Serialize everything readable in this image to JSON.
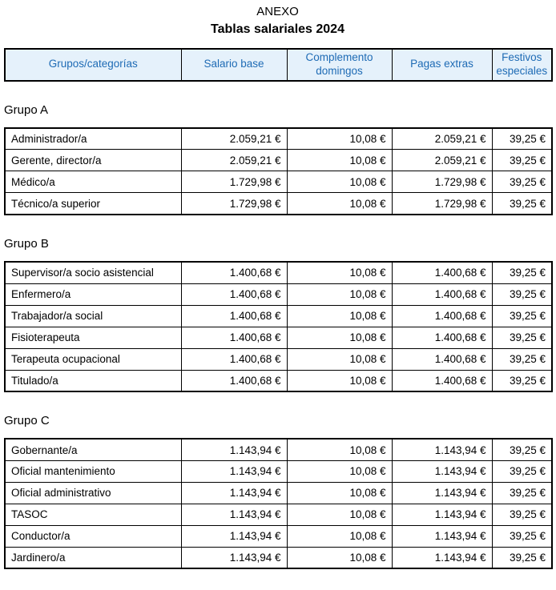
{
  "title": "ANEXO",
  "subtitle": "Tablas salariales 2024",
  "colors": {
    "header_bg": "#e5f1fb",
    "header_text": "#1e6bb5"
  },
  "columns": [
    "Grupos/categorías",
    "Salario base",
    "Complemento domingos",
    "Pagas extras",
    "Festivos especiales"
  ],
  "groups": [
    {
      "name": "Grupo A",
      "rows": [
        {
          "category": "Administrador/a",
          "values": [
            "2.059,21 €",
            "10,08 €",
            "2.059,21 €",
            "39,25 €"
          ]
        },
        {
          "category": "Gerente, director/a",
          "values": [
            "2.059,21 €",
            "10,08 €",
            "2.059,21 €",
            "39,25 €"
          ]
        },
        {
          "category": "Médico/a",
          "values": [
            "1.729,98 €",
            "10,08 €",
            "1.729,98 €",
            "39,25 €"
          ]
        },
        {
          "category": "Técnico/a superior",
          "values": [
            "1.729,98 €",
            "10,08 €",
            "1.729,98 €",
            "39,25 €"
          ]
        }
      ]
    },
    {
      "name": "Grupo B",
      "rows": [
        {
          "category": "Supervisor/a socio asistencial",
          "values": [
            "1.400,68 €",
            "10,08 €",
            "1.400,68 €",
            "39,25 €"
          ]
        },
        {
          "category": "Enfermero/a",
          "values": [
            "1.400,68 €",
            "10,08 €",
            "1.400,68 €",
            "39,25 €"
          ]
        },
        {
          "category": "Trabajador/a social",
          "values": [
            "1.400,68 €",
            "10,08 €",
            "1.400,68 €",
            "39,25 €"
          ]
        },
        {
          "category": "Fisioterapeuta",
          "values": [
            "1.400,68 €",
            "10,08 €",
            "1.400,68 €",
            "39,25 €"
          ]
        },
        {
          "category": "Terapeuta ocupacional",
          "values": [
            "1.400,68 €",
            "10,08 €",
            "1.400,68 €",
            "39,25 €"
          ]
        },
        {
          "category": "Titulado/a",
          "values": [
            "1.400,68 €",
            "10,08 €",
            "1.400,68 €",
            "39,25 €"
          ]
        }
      ]
    },
    {
      "name": "Grupo C",
      "rows": [
        {
          "category": "Gobernante/a",
          "values": [
            "1.143,94 €",
            "10,08 €",
            "1.143,94 €",
            "39,25 €"
          ]
        },
        {
          "category": "Oficial mantenimiento",
          "values": [
            "1.143,94 €",
            "10,08 €",
            "1.143,94 €",
            "39,25 €"
          ]
        },
        {
          "category": "Oficial administrativo",
          "values": [
            "1.143,94 €",
            "10,08 €",
            "1.143,94 €",
            "39,25 €"
          ]
        },
        {
          "category": "TASOC",
          "values": [
            "1.143,94 €",
            "10,08 €",
            "1.143,94 €",
            "39,25 €"
          ]
        },
        {
          "category": "Conductor/a",
          "values": [
            "1.143,94 €",
            "10,08 €",
            "1.143,94 €",
            "39,25 €"
          ]
        },
        {
          "category": "Jardinero/a",
          "values": [
            "1.143,94 €",
            "10,08 €",
            "1.143,94 €",
            "39,25 €"
          ]
        }
      ]
    }
  ]
}
